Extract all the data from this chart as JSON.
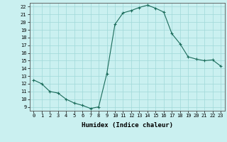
{
  "xlabel": "Humidex (Indice chaleur)",
  "ylabel": "",
  "x": [
    0,
    1,
    2,
    3,
    4,
    5,
    6,
    7,
    8,
    9,
    10,
    11,
    12,
    13,
    14,
    15,
    16,
    17,
    18,
    19,
    20,
    21,
    22,
    23
  ],
  "y": [
    12.5,
    12.0,
    11.0,
    10.8,
    10.0,
    9.5,
    9.2,
    8.8,
    9.0,
    13.3,
    19.7,
    21.2,
    21.5,
    21.9,
    22.2,
    21.8,
    21.3,
    18.5,
    17.2,
    15.5,
    15.2,
    15.0,
    15.1,
    14.3
  ],
  "line_color": "#1a6b5a",
  "marker": "+",
  "marker_size": 3,
  "bg_color": "#caf0f0",
  "grid_color": "#a0d8d8",
  "xlim": [
    -0.5,
    23.5
  ],
  "ylim": [
    8.5,
    22.5
  ],
  "yticks": [
    9,
    10,
    11,
    12,
    13,
    14,
    15,
    16,
    17,
    18,
    19,
    20,
    21,
    22
  ],
  "xticks": [
    0,
    1,
    2,
    3,
    4,
    5,
    6,
    7,
    8,
    9,
    10,
    11,
    12,
    13,
    14,
    15,
    16,
    17,
    18,
    19,
    20,
    21,
    22,
    23
  ],
  "tick_fontsize": 5.0,
  "xlabel_fontsize": 6.5,
  "title_fontsize": 6
}
